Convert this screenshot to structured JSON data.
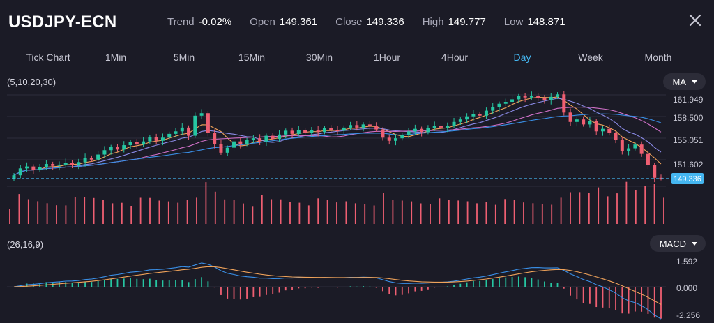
{
  "header": {
    "symbol": "USDJPY-ECN",
    "trend_label": "Trend",
    "trend_value": "-0.02%",
    "open_label": "Open",
    "open_value": "149.361",
    "close_label": "Close",
    "close_value": "149.336",
    "high_label": "High",
    "high_value": "149.777",
    "low_label": "Low",
    "low_value": "148.871"
  },
  "timeframes": [
    {
      "label": "Tick Chart",
      "active": false
    },
    {
      "label": "1Min",
      "active": false
    },
    {
      "label": "5Min",
      "active": false
    },
    {
      "label": "15Min",
      "active": false
    },
    {
      "label": "30Min",
      "active": false
    },
    {
      "label": "1Hour",
      "active": false
    },
    {
      "label": "4Hour",
      "active": false
    },
    {
      "label": "Day",
      "active": true
    },
    {
      "label": "Week",
      "active": false
    },
    {
      "label": "Month",
      "active": false
    }
  ],
  "main_panel": {
    "params": "(5,10,20,30)",
    "indicator": "MA",
    "price_ticks": [
      "161.949",
      "158.500",
      "155.051",
      "151.602"
    ],
    "current_price": "149.336"
  },
  "macd_panel": {
    "params": "(26,16,9)",
    "indicator": "MACD",
    "ticks": [
      "1.592",
      "0.000",
      "-2.256"
    ]
  },
  "colors": {
    "background": "#1b1b26",
    "up": "#26c6a2",
    "down": "#ef5f72",
    "accent": "#45b6f0",
    "ma5": "#f0a35a",
    "ma10": "#8a8ae6",
    "ma20": "#d070c8",
    "ma30": "#3a90e8"
  },
  "chart_data": {
    "type": "candlestick",
    "closes": [
      149.8,
      150.9,
      151.2,
      150.7,
      151.1,
      151.6,
      151.3,
      151.5,
      151.8,
      151.4,
      151.9,
      152.6,
      152.3,
      153.1,
      153.8,
      154.3,
      153.9,
      154.6,
      155.1,
      154.7,
      155.2,
      155.9,
      155.3,
      155.8,
      156.4,
      156.8,
      157.4,
      156.1,
      159.3,
      159.7,
      156.6,
      154.8,
      153.4,
      154.2,
      155.2,
      154.8,
      155.4,
      155.7,
      155.2,
      156.1,
      155.6,
      156.3,
      156.9,
      156.4,
      157.0,
      156.6,
      157.0,
      156.7,
      157.3,
      157.0,
      156.9,
      157.4,
      157.8,
      157.4,
      157.9,
      157.6,
      157.1,
      155.8,
      155.3,
      155.7,
      156.2,
      156.8,
      157.2,
      156.7,
      157.3,
      157.7,
      157.4,
      157.7,
      158.3,
      158.7,
      159.2,
      159.6,
      159.3,
      160.1,
      160.7,
      161.2,
      161.5,
      161.9,
      162.4,
      162.2,
      162.5,
      162.1,
      161.8,
      162.3,
      162.7,
      159.8,
      158.3,
      158.7,
      157.9,
      158.4,
      156.8,
      157.2,
      156.5,
      155.4,
      153.7,
      154.1,
      154.7,
      153.2,
      151.4,
      149.4,
      149.336
    ],
    "volume_tick_count": 71,
    "macd_ticks": {
      "max": 1.592,
      "zero": 0.0,
      "min": -2.256
    },
    "price_ticks": [
      161.949,
      158.5,
      155.051,
      151.602
    ],
    "last_close": 149.336
  }
}
